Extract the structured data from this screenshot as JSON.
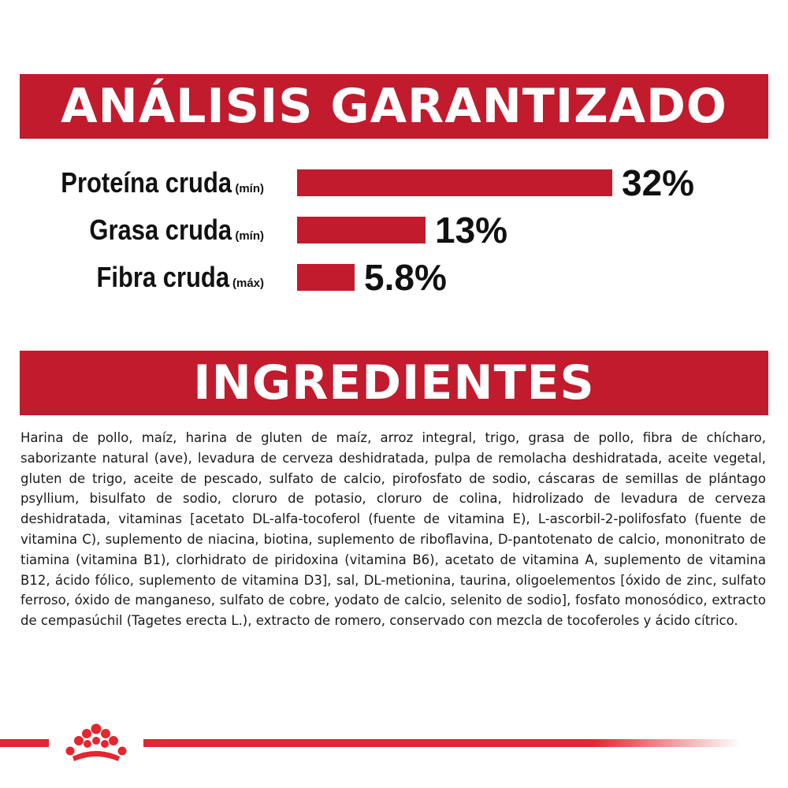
{
  "colors": {
    "brand_red": "#c11b2d",
    "footer_red": "#e3262f"
  },
  "analysis": {
    "title": "ANÁLISIS GARANTIZADO",
    "items": [
      {
        "name": "Proteína cruda",
        "qualifier": "(mín)",
        "value_text": "32%",
        "value": 32
      },
      {
        "name": "Grasa cruda",
        "qualifier": "(mín)",
        "value_text": "13%",
        "value": 13
      },
      {
        "name": "Fibra cruda",
        "qualifier": "(máx)",
        "value_text": "5.8%",
        "value": 5.8
      }
    ]
  },
  "ingredients": {
    "title": "INGREDIENTES",
    "text": "Harina de pollo, maíz, harina de gluten de maíz, arroz integral, trigo, grasa de pollo, fibra de chícharo, saborizante natural (ave), levadura de cerveza deshidratada, pulpa de remolacha deshidratada, aceite vegetal, gluten de trigo, aceite de pescado, sulfato de calcio, pirofosfato de sodio, cáscaras de semillas de plántago psyllium, bisulfato de sodio, cloruro de potasio, cloruro de colina, hidrolizado de levadura de cerveza deshidratada, vitaminas [acetato DL-alfa-tocoferol (fuente de vitamina E), L-ascorbil-2-polifosfato (fuente de vitamina C), suplemento de niacina, biotina, suplemento de riboflavina, D-pantotenato de calcio, mononitrato de tiamina (vitamina B1), clorhidrato de piridoxina (vitamina B6), acetato de vitamina A, suplemento de vitamina B12, ácido fólico, suplemento de vitamina D3], sal, DL-metionina, taurina, oligoelementos [óxido de zinc, sulfato ferroso, óxido de manganeso, sulfato de cobre, yodato de calcio, selenito de sodio], fosfato monosódico, extracto de cempasúchil (Tagetes erecta L.), extracto de romero, conservado con mezcla de tocoferoles y ácido cítrico."
  },
  "footer": {
    "logo_icon": "crown-icon"
  }
}
